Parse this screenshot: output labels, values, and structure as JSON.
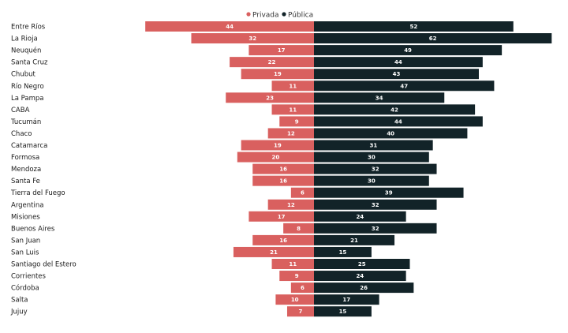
{
  "chart_data": {
    "type": "bar",
    "orientation": "horizontal-diverging",
    "categories": [
      "Entre Ríos",
      "La Rioja",
      "Neuquén",
      "Santa Cruz",
      "Chubut",
      "Río Negro",
      "La Pampa",
      "CABA",
      "Tucumán",
      "Chaco",
      "Catamarca",
      "Formosa",
      "Mendoza",
      "Santa Fe",
      "Tierra del Fuego",
      "Argentina",
      "Misiones",
      "Buenos Aires",
      "San Juan",
      "San Luis",
      "Santiago del Estero",
      "Corrientes",
      "Córdoba",
      "Salta",
      "Jujuy"
    ],
    "series": [
      {
        "name": "Privada",
        "color": "#d9605f",
        "values": [
          44,
          32,
          17,
          22,
          19,
          11,
          23,
          11,
          9,
          12,
          19,
          20,
          16,
          16,
          6,
          12,
          17,
          8,
          16,
          21,
          11,
          9,
          6,
          10,
          7
        ]
      },
      {
        "name": "Pública",
        "color": "#122328",
        "values": [
          52,
          62,
          49,
          44,
          43,
          47,
          34,
          42,
          44,
          40,
          31,
          30,
          32,
          30,
          39,
          32,
          24,
          32,
          21,
          15,
          25,
          24,
          26,
          17,
          15
        ]
      }
    ],
    "legend": "top-center",
    "grid": false
  }
}
